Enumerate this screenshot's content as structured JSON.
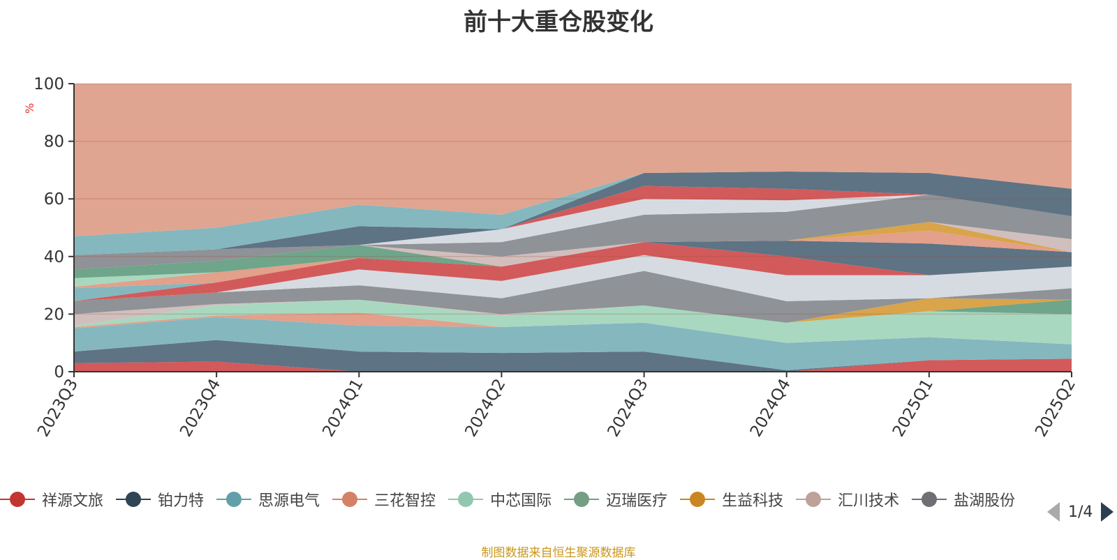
{
  "chart_data": {
    "type": "area",
    "title": "前十大重仓股变化",
    "ylabel": "%",
    "ylim": [
      0,
      100
    ],
    "yticks": [
      0,
      20,
      40,
      60,
      80,
      100
    ],
    "categories": [
      "2023Q3",
      "2023Q4",
      "2024Q1",
      "2024Q2",
      "2024Q3",
      "2024Q4",
      "2025Q1",
      "2025Q2"
    ],
    "grid": true,
    "bands": [
      {
        "color": "#d35a5a",
        "values": [
          0,
          0,
          0,
          0,
          0,
          0,
          0,
          0
        ],
        "tops": [
          3,
          3.5,
          0,
          0,
          0,
          0,
          4,
          4.5
        ]
      },
      {
        "color": "#5e7384",
        "values": [
          3,
          3.5,
          0,
          0,
          0,
          0,
          4,
          4.5
        ],
        "tops": [
          7,
          11,
          7,
          6.5,
          7,
          0.5,
          4,
          4.5
        ]
      },
      {
        "color": "#85b7bf",
        "values": [
          7,
          11,
          7,
          6.5,
          7,
          0.5,
          4,
          4.5
        ],
        "tops": [
          15,
          19,
          16,
          15.5,
          17,
          10,
          12,
          9.5
        ]
      },
      {
        "color": "#e3a08a",
        "values": [
          15,
          19,
          16,
          15.5,
          17,
          10,
          12,
          9.5
        ],
        "tops": [
          15.5,
          19.5,
          20.5,
          15.5,
          17,
          10,
          12,
          9.5
        ]
      },
      {
        "color": "#a8d8c0",
        "values": [
          15.5,
          19.5,
          20.5,
          15.5,
          17,
          10,
          12,
          9.5
        ],
        "tops": [
          16,
          23,
          25,
          19.5,
          23,
          17,
          21,
          20
        ]
      },
      {
        "color": "#6fa58a",
        "values": [
          16,
          23,
          25,
          19.5,
          23,
          17,
          21,
          20
        ],
        "tops": [
          16,
          23,
          25,
          19.5,
          23,
          17,
          21,
          25
        ]
      },
      {
        "color": "#d9a44a",
        "values": [
          16,
          23,
          25,
          19.5,
          23,
          17,
          21,
          25
        ],
        "tops": [
          16,
          23,
          25,
          19.5,
          23,
          17,
          25.5,
          25
        ]
      },
      {
        "color": "#d1bfbd",
        "values": [
          16,
          23,
          25,
          19.5,
          23,
          17,
          25.5,
          25
        ],
        "tops": [
          20,
          23.5,
          25,
          20,
          23,
          17,
          25.5,
          25
        ]
      },
      {
        "color": "#8f9296",
        "values": [
          20,
          23.5,
          25,
          20,
          23,
          17,
          25.5,
          25
        ],
        "tops": [
          24.5,
          27.5,
          30,
          25.5,
          35,
          24.5,
          25.5,
          29
        ]
      },
      {
        "color": "#d6dbe2",
        "values": [
          24.5,
          27.5,
          30,
          25.5,
          35,
          24.5,
          25.5,
          29
        ],
        "tops": [
          24.5,
          27.5,
          35.5,
          31.5,
          40.5,
          33.5,
          33.5,
          36.5
        ]
      },
      {
        "color": "#d35a5a",
        "values": [
          24.5,
          27.5,
          35.5,
          31.5,
          40.5,
          33.5,
          33.5,
          36.5
        ],
        "tops": [
          24.5,
          31,
          39.5,
          36.5,
          45,
          40,
          33.5,
          36.5
        ]
      },
      {
        "color": "#5e7384",
        "values": [
          24.5,
          31,
          39.5,
          36.5,
          45,
          40,
          33.5,
          36.5
        ],
        "tops": [
          24.5,
          31,
          39.5,
          36.5,
          45,
          45.5,
          44.5,
          41.5
        ]
      },
      {
        "color": "#85b7bf",
        "values": [
          24.5,
          31,
          39.5,
          36.5,
          45,
          45.5,
          44.5,
          41.5
        ],
        "tops": [
          29,
          31,
          39.5,
          36.5,
          45,
          45.5,
          44.5,
          41.5
        ]
      },
      {
        "color": "#e3a08a",
        "values": [
          29,
          31,
          39.5,
          36.5,
          45,
          45.5,
          44.5,
          41.5
        ],
        "tops": [
          29.5,
          34.5,
          39.5,
          36.5,
          45,
          45.5,
          49,
          41.5
        ]
      },
      {
        "color": "#a8d8c0",
        "values": [
          29.5,
          34.5,
          39.5,
          36.5,
          45,
          45.5,
          49,
          41.5
        ],
        "tops": [
          32.5,
          34.5,
          39.5,
          36.5,
          45,
          45.5,
          49,
          41.5
        ]
      },
      {
        "color": "#6fa58a",
        "values": [
          32.5,
          34.5,
          39.5,
          36.5,
          45,
          45.5,
          49,
          41.5
        ],
        "tops": [
          35.5,
          38.5,
          44,
          36.5,
          45,
          45.5,
          49,
          41.5
        ]
      },
      {
        "color": "#d9a44a",
        "values": [
          35.5,
          38.5,
          44,
          36.5,
          45,
          45.5,
          49,
          41.5
        ],
        "tops": [
          35.5,
          38.5,
          44,
          36.5,
          45,
          45.5,
          52,
          41.5
        ]
      },
      {
        "color": "#d1bfbd",
        "values": [
          35.5,
          38.5,
          44,
          36.5,
          45,
          45.5,
          52,
          41.5
        ],
        "tops": [
          35.5,
          38.5,
          44,
          40,
          45,
          45.5,
          52,
          46
        ]
      },
      {
        "color": "#8f9296",
        "values": [
          35.5,
          38.5,
          44,
          40,
          45,
          45.5,
          52,
          46
        ],
        "tops": [
          40.5,
          42.5,
          44,
          45,
          54.5,
          55.5,
          61.5,
          54
        ]
      },
      {
        "color": "#d6dbe2",
        "values": [
          40.5,
          42.5,
          44,
          45,
          54.5,
          55.5,
          61.5,
          54
        ],
        "tops": [
          40.5,
          42.5,
          44,
          49.5,
          60,
          59.5,
          61.5,
          54
        ]
      },
      {
        "color": "#d35a5a",
        "values": [
          40.5,
          42.5,
          44,
          49.5,
          60,
          59.5,
          61.5,
          54
        ],
        "tops": [
          40.5,
          42.5,
          44,
          49.5,
          64.5,
          63.5,
          61.5,
          54
        ]
      },
      {
        "color": "#5e7384",
        "values": [
          40.5,
          42.5,
          44,
          49.5,
          64.5,
          63.5,
          61.5,
          54
        ],
        "tops": [
          40.5,
          42.5,
          50.5,
          49.5,
          69,
          69.5,
          69,
          63.5
        ]
      },
      {
        "color": "#85b7bf",
        "values": [
          40.5,
          42.5,
          50.5,
          49.5,
          69,
          69.5,
          69,
          63.5
        ],
        "tops": [
          47,
          50,
          58,
          54.5,
          69,
          69.5,
          69,
          63.5
        ]
      },
      {
        "color": "#e0a590",
        "values": [
          47,
          50,
          58,
          54.5,
          69,
          69.5,
          69,
          63.5
        ],
        "tops": [
          100,
          100,
          100,
          100,
          100,
          100,
          100,
          100
        ]
      }
    ],
    "legend": [
      {
        "name": "祥源文旅",
        "color": "#c23531"
      },
      {
        "name": "铂力特",
        "color": "#2f4554"
      },
      {
        "name": "思源电气",
        "color": "#61a0a8"
      },
      {
        "name": "三花智控",
        "color": "#d48265"
      },
      {
        "name": "中芯国际",
        "color": "#91c7ae"
      },
      {
        "name": "迈瑞医疗",
        "color": "#749f83"
      },
      {
        "name": "生益科技",
        "color": "#ca8622"
      },
      {
        "name": "汇川技术",
        "color": "#bda29a"
      },
      {
        "name": "盐湖股份",
        "color": "#6e7074"
      }
    ]
  },
  "legend_pager": {
    "text": "1/4"
  },
  "footer": "制图数据来自恒生聚源数据库"
}
